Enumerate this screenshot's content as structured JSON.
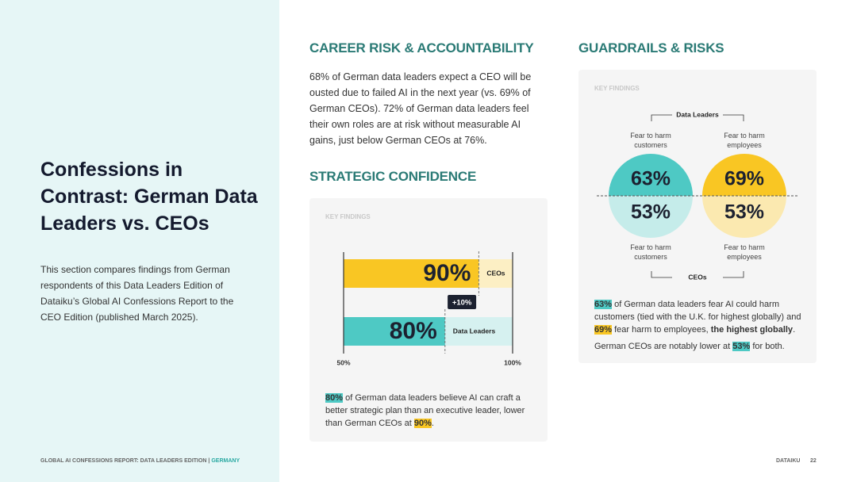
{
  "sidebar": {
    "title": "Confessions in Contrast: German Data Leaders vs. CEOs",
    "text": "This section compares findings from German respondents of this Data Leaders Edition of Dataiku’s Global AI Confessions Report to the CEO Edition (published March 2025)."
  },
  "footer": {
    "report": "GLOBAL AI CONFESSIONS REPORT: DATA LEADERS EDITION |",
    "country": "GERMANY",
    "brand": "DATAIKU",
    "page": "22"
  },
  "sections": [
    {
      "heading": "CAREER RISK & ACCOUNTABILITY",
      "text": "68% of German data leaders expect a CEO will be ousted due to failed AI in the next year (vs. 69% of German CEOs). 72% of German data leaders feel their own roles are at risk without measurable AI gains, just below German CEOs at 76%."
    },
    {
      "heading": "STRATEGIC CONFIDENCE"
    },
    {
      "heading": "GUARDRAILS & RISKS"
    }
  ],
  "chart_data": [
    {
      "type": "bar",
      "orientation": "horizontal",
      "label": "KEY FINDINGS",
      "categories": [
        "CEOs",
        "Data Leaders"
      ],
      "values": [
        90,
        80
      ],
      "value_labels": [
        "90%",
        "80%"
      ],
      "colors": [
        "#f9c623",
        "#4ec9c4"
      ],
      "light_colors": [
        "#fcefc4",
        "#d6f1f0"
      ],
      "xlim": [
        50,
        100
      ],
      "xticks": [
        {
          "value": 50,
          "label": "50%"
        },
        {
          "value": 100,
          "label": "100%"
        }
      ],
      "annotation": "+10%",
      "caption": [
        "80%",
        " of German data leaders believe AI can craft a better strategic plan than an executive leader, lower than German CEOs at ",
        "90%",
        "."
      ]
    },
    {
      "type": "split-circles",
      "label": "KEY FINDINGS",
      "categories": [
        "Fear to harm customers",
        "Fear to harm employees"
      ],
      "series": [
        {
          "name": "Data Leaders",
          "colors": [
            "#4ec9c4",
            "#f9c623"
          ],
          "values": [
            63,
            69
          ],
          "value_labels": [
            "63%",
            "69%"
          ]
        },
        {
          "name": "CEOs",
          "colors": [
            "#c5ecea",
            "#fbe9b0"
          ],
          "values": [
            53,
            53
          ],
          "value_labels": [
            "53%",
            "53%"
          ]
        }
      ],
      "caption": [
        [
          "63%",
          " of German data leaders fear AI could harm customers (tied with the U.K. for highest globally) and ",
          "69%",
          " fear harm to employees, ",
          "the highest globally",
          "."
        ],
        [
          "German CEOs are notably lower at ",
          "53%",
          " for both."
        ]
      ]
    }
  ]
}
